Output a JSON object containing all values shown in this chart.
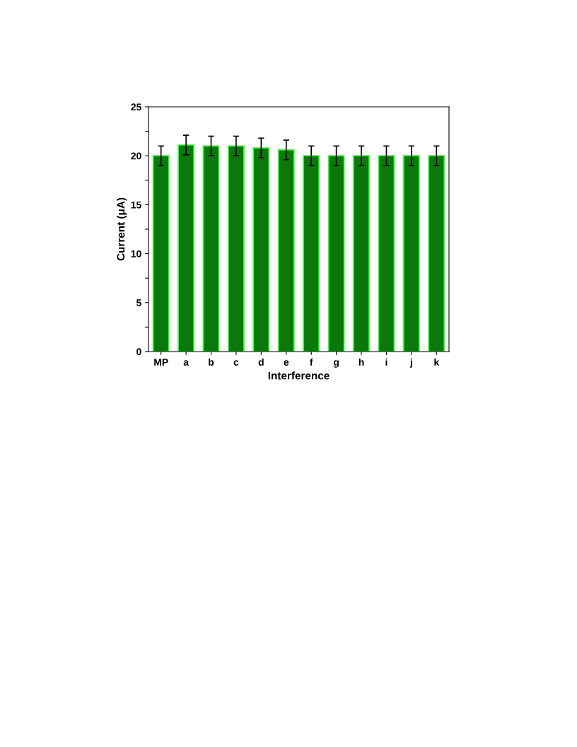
{
  "chart_data": {
    "type": "bar",
    "xlabel": "Interference",
    "ylabel": "Current (μA)",
    "categories": [
      "MP",
      "a",
      "b",
      "c",
      "d",
      "e",
      "f",
      "g",
      "h",
      "i",
      "j",
      "k"
    ],
    "values": [
      20.0,
      21.1,
      21.0,
      21.0,
      20.8,
      20.6,
      20.0,
      20.0,
      20.0,
      20.0,
      20.0,
      20.0
    ],
    "errors": [
      1.0,
      1.0,
      1.0,
      1.0,
      1.0,
      1.0,
      1.0,
      1.0,
      1.0,
      1.0,
      1.0,
      1.0
    ],
    "color": "#0a780a",
    "ylim": [
      0,
      25
    ],
    "yticks": [
      0,
      {
        "value": 2.5,
        "label": null
      },
      5,
      {
        "value": 7.5,
        "label": null
      },
      10,
      {
        "value": 12.5,
        "label": null
      },
      15,
      {
        "value": 17.5,
        "label": null
      },
      20,
      {
        "value": 22.5,
        "label": null
      },
      25
    ],
    "grid": false
  }
}
